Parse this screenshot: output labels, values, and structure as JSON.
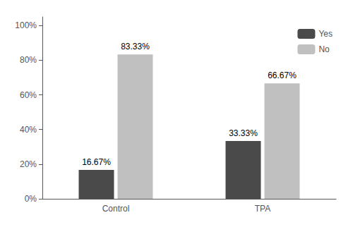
{
  "chart_data": {
    "type": "bar",
    "categories": [
      "Control",
      "TPA"
    ],
    "series": [
      {
        "name": "Yes",
        "color": "#4a4a4a",
        "values": [
          16.67,
          33.33
        ],
        "value_labels": [
          "16.67%",
          "33.33%"
        ]
      },
      {
        "name": "No",
        "color": "#c0c0c0",
        "values": [
          83.33,
          66.67
        ],
        "value_labels": [
          "83.33%",
          "66.67%"
        ]
      }
    ],
    "ylim": [
      0,
      105
    ],
    "yticks": [
      {
        "value": 0,
        "label": "0%"
      },
      {
        "value": 20,
        "label": "20%"
      },
      {
        "value": 40,
        "label": "40%"
      },
      {
        "value": 60,
        "label": "60%"
      },
      {
        "value": 80,
        "label": "80%"
      },
      {
        "value": 100,
        "label": "100%"
      }
    ],
    "grid": false,
    "legend": "upper right",
    "data_labels": true
  }
}
